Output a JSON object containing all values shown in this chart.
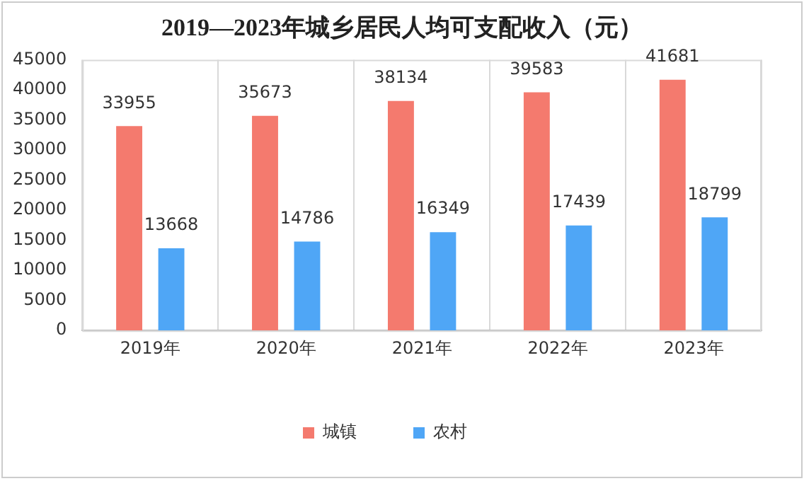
{
  "chart_data": {
    "type": "bar",
    "title": "2019—2023年城乡居民人均可支配收入（元）",
    "categories": [
      "2019年",
      "2020年",
      "2021年",
      "2022年",
      "2023年"
    ],
    "series": [
      {
        "name": "城镇",
        "color": "#f47a6e",
        "values": [
          33955,
          35673,
          38134,
          39583,
          41681
        ]
      },
      {
        "name": "农村",
        "color": "#4fa6f6",
        "values": [
          13668,
          14786,
          16349,
          17439,
          18799
        ]
      }
    ],
    "ylim": [
      0,
      45000
    ],
    "yticks": [
      0,
      5000,
      10000,
      15000,
      20000,
      25000,
      30000,
      35000,
      40000,
      45000
    ],
    "grid": "x",
    "legend": "bottom",
    "data_labels": true
  }
}
